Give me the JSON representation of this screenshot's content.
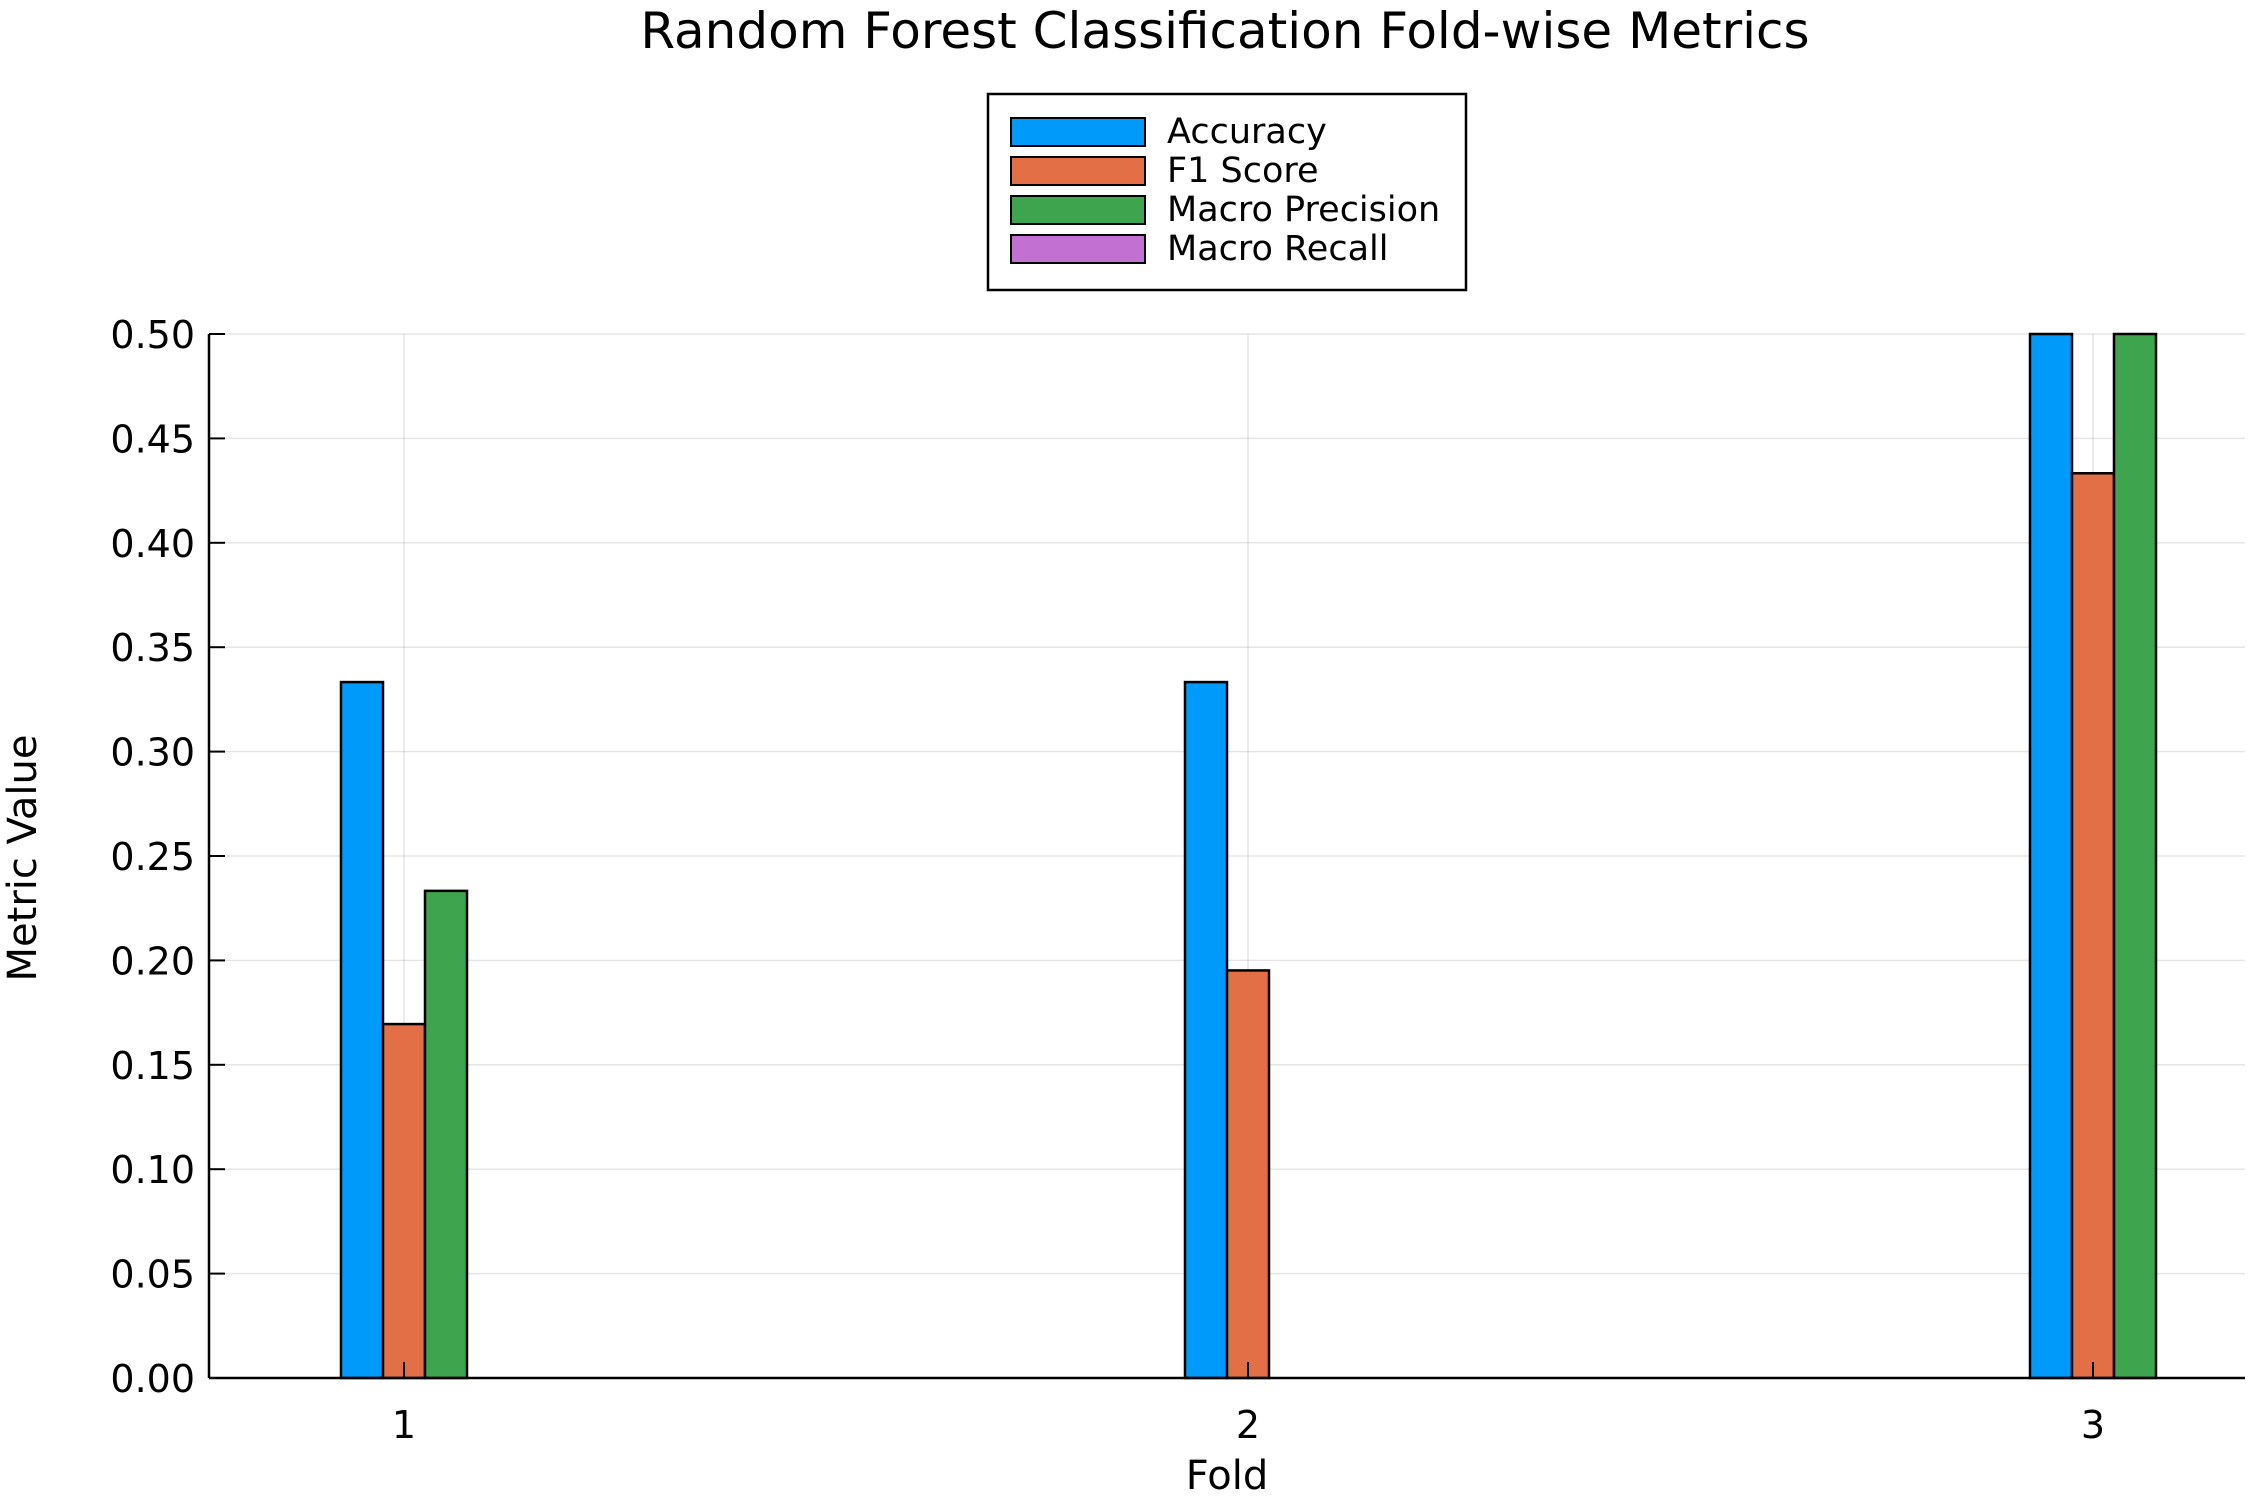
{
  "chart_data": {
    "type": "bar",
    "title": "Random Forest Classification Fold-wise Metrics",
    "xlabel": "Fold",
    "ylabel": "Metric Value",
    "categories": [
      "1",
      "2",
      "3"
    ],
    "series": [
      {
        "name": "Accuracy",
        "color": "#009AFA",
        "values": [
          0.3333,
          0.3333,
          0.5
        ]
      },
      {
        "name": "F1 Score",
        "color": "#E26F46",
        "values": [
          0.1695,
          0.1952,
          0.4333
        ]
      },
      {
        "name": "Macro Precision",
        "color": "#3EA44E",
        "values": [
          0.2333,
          0.0,
          0.5
        ]
      },
      {
        "name": "Macro Recall",
        "color": "#C271D2",
        "values": [
          0.0,
          0.0,
          0.0
        ]
      }
    ],
    "ylim": [
      0,
      0.5
    ],
    "yticks": [
      "0.00",
      "0.05",
      "0.10",
      "0.15",
      "0.20",
      "0.25",
      "0.30",
      "0.35",
      "0.40",
      "0.45",
      "0.50"
    ],
    "grid": true,
    "legend_position": "top-center"
  }
}
